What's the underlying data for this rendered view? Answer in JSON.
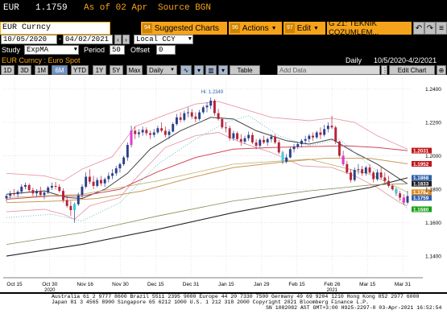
{
  "quote": {
    "ticker": "EUR",
    "price": "1.1759",
    "asof": "As of 02 Apr",
    "source": "Source BGN"
  },
  "command": {
    "value": "EUR Curncy",
    "suggested": {
      "num": "94",
      "label": "Suggested Charts"
    },
    "actions": {
      "num": "96",
      "label": "Actions"
    },
    "edit": {
      "num": "97",
      "label": "Edit"
    },
    "panel": "G 21: TEKNIK COZUMLEM..."
  },
  "dates": {
    "start": "10/05/2020",
    "end": "04/02/2021",
    "currency": "Local CCY"
  },
  "study": {
    "label": "Study",
    "value": "ExpMA",
    "period_label": "Period",
    "period": "50",
    "offset_label": "Offset",
    "offset": "0"
  },
  "subtitle": {
    "left": "EUR Curncy : Euro Spot",
    "freq": "Daily",
    "range": "10/5/2020-4/2/2021"
  },
  "toolbar": {
    "ranges": [
      "1D",
      "3D",
      "1M",
      "6M",
      "YTD",
      "1Y",
      "5Y",
      "Max"
    ],
    "selected": "6M",
    "period": "Daily",
    "table": "Table",
    "add_data": "Add Data",
    "edit_chart": "Edit Chart"
  },
  "chart_data": {
    "type": "line",
    "y_ticks": [
      1.24,
      1.22,
      1.2,
      1.18,
      1.16,
      1.14
    ],
    "ylim": [
      1.128,
      1.2465
    ],
    "x_ticks": [
      "Oct 15",
      "Oct 30",
      "Nov 16",
      "Nov 30",
      "Dec 15",
      "Dec 31",
      "Jan 15",
      "Jan 29",
      "Feb 15",
      "Feb 26",
      "Mar 15",
      "Mar 31"
    ],
    "year_labels": [
      {
        "label": "2020",
        "at": "Oct 30"
      },
      {
        "label": "2021",
        "at": "Feb 26"
      }
    ],
    "annotation": "Hi: 1.2349",
    "price_tags": [
      {
        "value": "1.2031",
        "y": 1.2031,
        "color": "#c0161a"
      },
      {
        "value": "1.1952",
        "y": 1.1952,
        "color": "#c0161a"
      },
      {
        "value": "1.1868",
        "y": 1.1868,
        "color": "#2f5ea8"
      },
      {
        "value": "1.1833",
        "y": 1.1833,
        "color": "#202020"
      },
      {
        "value": "1.1782",
        "y": 1.1782,
        "color": "#e08a1c"
      },
      {
        "value": "1.1759",
        "y": 1.1759,
        "color": "#3060b0"
      },
      {
        "value": "1.1680",
        "y": 1.168,
        "color": "#18a018"
      }
    ],
    "candles": [
      [
        1.1745,
        1.177,
        1.1725,
        1.176
      ],
      [
        1.176,
        1.179,
        1.1745,
        1.1775
      ],
      [
        1.1775,
        1.18,
        1.176,
        1.177
      ],
      [
        1.177,
        1.1795,
        1.175,
        1.1785
      ],
      [
        1.1785,
        1.183,
        1.177,
        1.1815
      ],
      [
        1.1815,
        1.184,
        1.18,
        1.1825
      ],
      [
        1.1825,
        1.1835,
        1.178,
        1.1795
      ],
      [
        1.1795,
        1.181,
        1.176,
        1.1775
      ],
      [
        1.1775,
        1.18,
        1.1755,
        1.179
      ],
      [
        1.179,
        1.1815,
        1.176,
        1.1765
      ],
      [
        1.1765,
        1.179,
        1.174,
        1.178
      ],
      [
        1.178,
        1.182,
        1.177,
        1.181
      ],
      [
        1.181,
        1.184,
        1.1795,
        1.182
      ],
      [
        1.182,
        1.1845,
        1.18,
        1.1815
      ],
      [
        1.1815,
        1.183,
        1.178,
        1.179
      ],
      [
        1.179,
        1.1805,
        1.172,
        1.1735
      ],
      [
        1.1735,
        1.176,
        1.169,
        1.17
      ],
      [
        1.17,
        1.173,
        1.164,
        1.1675
      ],
      [
        1.1675,
        1.172,
        1.16,
        1.171
      ],
      [
        1.171,
        1.178,
        1.17,
        1.1765
      ],
      [
        1.1765,
        1.183,
        1.175,
        1.1815
      ],
      [
        1.1815,
        1.19,
        1.1805,
        1.1875
      ],
      [
        1.1875,
        1.192,
        1.183,
        1.1845
      ],
      [
        1.1845,
        1.188,
        1.18,
        1.182
      ],
      [
        1.182,
        1.187,
        1.181,
        1.1855
      ],
      [
        1.1855,
        1.188,
        1.182,
        1.1835
      ],
      [
        1.1835,
        1.187,
        1.1815,
        1.186
      ],
      [
        1.186,
        1.19,
        1.184,
        1.188
      ],
      [
        1.188,
        1.192,
        1.186,
        1.1895
      ],
      [
        1.1895,
        1.194,
        1.188,
        1.1925
      ],
      [
        1.1925,
        1.196,
        1.19,
        1.195
      ],
      [
        1.195,
        1.2,
        1.194,
        1.199
      ],
      [
        1.199,
        1.208,
        1.197,
        1.2065
      ],
      [
        1.2065,
        1.218,
        1.205,
        1.215
      ],
      [
        1.215,
        1.2175,
        1.21,
        1.213
      ],
      [
        1.213,
        1.216,
        1.211,
        1.214
      ],
      [
        1.214,
        1.2175,
        1.212,
        1.2155
      ],
      [
        1.2155,
        1.217,
        1.212,
        1.2135
      ],
      [
        1.2135,
        1.215,
        1.21,
        1.2125
      ],
      [
        1.2125,
        1.216,
        1.211,
        1.214
      ],
      [
        1.214,
        1.218,
        1.213,
        1.2165
      ],
      [
        1.2165,
        1.22,
        1.214,
        1.215
      ],
      [
        1.215,
        1.2175,
        1.211,
        1.2125
      ],
      [
        1.2125,
        1.216,
        1.21,
        1.2145
      ],
      [
        1.2145,
        1.22,
        1.214,
        1.219
      ],
      [
        1.219,
        1.225,
        1.218,
        1.223
      ],
      [
        1.223,
        1.226,
        1.22,
        1.2215
      ],
      [
        1.2215,
        1.227,
        1.2205,
        1.2255
      ],
      [
        1.2255,
        1.229,
        1.223,
        1.226
      ],
      [
        1.226,
        1.228,
        1.222,
        1.2235
      ],
      [
        1.2235,
        1.226,
        1.22,
        1.222
      ],
      [
        1.222,
        1.2275,
        1.221,
        1.226
      ],
      [
        1.226,
        1.23,
        1.225,
        1.229
      ],
      [
        1.229,
        1.232,
        1.226,
        1.23
      ],
      [
        1.23,
        1.2349,
        1.228,
        1.233
      ],
      [
        1.233,
        1.234,
        1.224,
        1.2255
      ],
      [
        1.2255,
        1.228,
        1.221,
        1.222
      ],
      [
        1.222,
        1.223,
        1.216,
        1.217
      ],
      [
        1.217,
        1.22,
        1.214,
        1.2165
      ],
      [
        1.2165,
        1.218,
        1.209,
        1.2105
      ],
      [
        1.2105,
        1.215,
        1.209,
        1.2135
      ],
      [
        1.2135,
        1.2145,
        1.209,
        1.21
      ],
      [
        1.21,
        1.213,
        1.206,
        1.2085
      ],
      [
        1.2085,
        1.212,
        1.207,
        1.2105
      ],
      [
        1.2105,
        1.2145,
        1.209,
        1.2125
      ],
      [
        1.2125,
        1.214,
        1.207,
        1.208
      ],
      [
        1.208,
        1.21,
        1.204,
        1.206
      ],
      [
        1.206,
        1.2105,
        1.205,
        1.2095
      ],
      [
        1.2095,
        1.212,
        1.207,
        1.208
      ],
      [
        1.208,
        1.211,
        1.206,
        1.21
      ],
      [
        1.21,
        1.213,
        1.208,
        1.2115
      ],
      [
        1.2115,
        1.213,
        1.207,
        1.208
      ],
      [
        1.208,
        1.2095,
        1.201,
        1.202
      ],
      [
        1.202,
        1.203,
        1.195,
        1.1965
      ],
      [
        1.1965,
        1.201,
        1.1955,
        1.199
      ],
      [
        1.199,
        1.205,
        1.1985,
        1.204
      ],
      [
        1.204,
        1.207,
        1.202,
        1.2055
      ],
      [
        1.2055,
        1.208,
        1.204,
        1.207
      ],
      [
        1.207,
        1.21,
        1.205,
        1.209
      ],
      [
        1.209,
        1.212,
        1.207,
        1.21
      ],
      [
        1.21,
        1.213,
        1.208,
        1.212
      ],
      [
        1.212,
        1.214,
        1.209,
        1.211
      ],
      [
        1.211,
        1.215,
        1.21,
        1.214
      ],
      [
        1.214,
        1.217,
        1.21,
        1.2125
      ],
      [
        1.2125,
        1.2185,
        1.2115,
        1.216
      ],
      [
        1.216,
        1.22,
        1.214,
        1.218
      ],
      [
        1.218,
        1.224,
        1.216,
        1.217
      ],
      [
        1.217,
        1.218,
        1.207,
        1.2085
      ],
      [
        1.2085,
        1.209,
        1.199,
        1.2
      ],
      [
        1.2,
        1.203,
        1.194,
        1.195
      ],
      [
        1.195,
        1.197,
        1.189,
        1.19
      ],
      [
        1.19,
        1.192,
        1.184,
        1.1855
      ],
      [
        1.1855,
        1.193,
        1.1845,
        1.1915
      ],
      [
        1.1915,
        1.195,
        1.189,
        1.192
      ],
      [
        1.192,
        1.194,
        1.188,
        1.1895
      ],
      [
        1.1895,
        1.194,
        1.188,
        1.193
      ],
      [
        1.193,
        1.195,
        1.189,
        1.19
      ],
      [
        1.19,
        1.191,
        1.184,
        1.186
      ],
      [
        1.186,
        1.192,
        1.185,
        1.19
      ],
      [
        1.19,
        1.193,
        1.186,
        1.187
      ],
      [
        1.187,
        1.19,
        1.183,
        1.185
      ],
      [
        1.185,
        1.188,
        1.181,
        1.182
      ],
      [
        1.182,
        1.183,
        1.179,
        1.18
      ],
      [
        1.18,
        1.181,
        1.176,
        1.1775
      ],
      [
        1.1775,
        1.179,
        1.173,
        1.175
      ],
      [
        1.175,
        1.177,
        1.1705,
        1.172
      ],
      [
        1.172,
        1.179,
        1.171,
        1.1759
      ]
    ],
    "bands": {
      "upper": [
        [
          0,
          1.1895
        ],
        [
          10,
          1.188
        ],
        [
          15,
          1.185
        ],
        [
          20,
          1.192
        ],
        [
          28,
          1.1995
        ],
        [
          34,
          1.2175
        ],
        [
          42,
          1.2245
        ],
        [
          50,
          1.231
        ],
        [
          56,
          1.2325
        ],
        [
          62,
          1.2285
        ],
        [
          70,
          1.223
        ],
        [
          80,
          1.221
        ],
        [
          86,
          1.2225
        ],
        [
          92,
          1.22
        ],
        [
          98,
          1.212
        ],
        [
          104,
          1.206
        ],
        [
          106,
          1.204
        ]
      ],
      "lower": [
        [
          0,
          1.1665
        ],
        [
          10,
          1.168
        ],
        [
          15,
          1.165
        ],
        [
          18,
          1.162
        ],
        [
          22,
          1.17
        ],
        [
          30,
          1.175
        ],
        [
          34,
          1.186
        ],
        [
          42,
          1.205
        ],
        [
          50,
          1.212
        ],
        [
          56,
          1.214
        ],
        [
          62,
          1.208
        ],
        [
          70,
          1.202
        ],
        [
          78,
          1.194
        ],
        [
          86,
          1.193
        ],
        [
          92,
          1.188
        ],
        [
          98,
          1.181
        ],
        [
          104,
          1.172
        ],
        [
          106,
          1.17
        ]
      ],
      "ma_short": [
        [
          0,
          1.177
        ],
        [
          10,
          1.179
        ],
        [
          16,
          1.175
        ],
        [
          20,
          1.1745
        ],
        [
          26,
          1.18
        ],
        [
          32,
          1.1895
        ],
        [
          38,
          1.204
        ],
        [
          46,
          1.215
        ],
        [
          54,
          1.223
        ],
        [
          60,
          1.222
        ],
        [
          66,
          1.215
        ],
        [
          74,
          1.209
        ],
        [
          80,
          1.207
        ],
        [
          86,
          1.21
        ],
        [
          92,
          1.202
        ],
        [
          98,
          1.195
        ],
        [
          104,
          1.186
        ],
        [
          106,
          1.1833
        ]
      ],
      "ma_mid": [
        [
          0,
          1.174
        ],
        [
          12,
          1.176
        ],
        [
          20,
          1.176
        ],
        [
          30,
          1.18
        ],
        [
          40,
          1.1905
        ],
        [
          50,
          1.199
        ],
        [
          60,
          1.204
        ],
        [
          70,
          1.205
        ],
        [
          80,
          1.2055
        ],
        [
          90,
          1.206
        ],
        [
          98,
          1.205
        ],
        [
          106,
          1.2031
        ]
      ],
      "ma_long": [
        [
          0,
          1.172
        ],
        [
          14,
          1.173
        ],
        [
          24,
          1.1745
        ],
        [
          36,
          1.179
        ],
        [
          48,
          1.1865
        ],
        [
          60,
          1.193
        ],
        [
          72,
          1.196
        ],
        [
          84,
          1.1985
        ],
        [
          96,
          1.1985
        ],
        [
          106,
          1.1952
        ]
      ],
      "ma_200": [
        [
          0,
          1.14
        ],
        [
          20,
          1.147
        ],
        [
          40,
          1.156
        ],
        [
          60,
          1.166
        ],
        [
          80,
          1.1745
        ],
        [
          96,
          1.181
        ],
        [
          106,
          1.1868
        ]
      ],
      "ma_black": [
        [
          0,
          1.147
        ],
        [
          20,
          1.154
        ],
        [
          40,
          1.164
        ],
        [
          60,
          1.173
        ],
        [
          80,
          1.179
        ],
        [
          96,
          1.1825
        ],
        [
          106,
          1.1833
        ]
      ],
      "ma_orange": [
        [
          0,
          1.175
        ],
        [
          20,
          1.177
        ],
        [
          40,
          1.185
        ],
        [
          60,
          1.195
        ],
        [
          80,
          1.198
        ],
        [
          96,
          1.189
        ],
        [
          106,
          1.1782
        ]
      ],
      "dotted": [
        [
          0,
          1.163
        ],
        [
          12,
          1.165
        ],
        [
          20,
          1.161
        ],
        [
          30,
          1.172
        ],
        [
          40,
          1.195
        ],
        [
          50,
          1.21
        ],
        [
          58,
          1.22
        ],
        [
          64,
          1.224
        ],
        [
          72,
          1.212
        ],
        [
          80,
          1.206
        ],
        [
          88,
          1.21
        ],
        [
          94,
          1.198
        ],
        [
          100,
          1.187
        ],
        [
          106,
          1.168
        ]
      ]
    }
  },
  "footer": {
    "line1": "Australia 61 2 9777 8600  Brazil 5511 2395 9000  Europe 44 20 7330 7500  Germany 49 69 9204 1210  Hong Kong 852 2977 6000",
    "line2": "Japan 81 3 4565 8900          Singapore 65 6212 1000          U.S. 1 212 318 2000          Copyright 2021 Bloomberg Finance L.P.",
    "line3": "SN 1082082 AST  GMT+3:00 H925-2297-0 03-Apr-2021 16:52:54"
  }
}
